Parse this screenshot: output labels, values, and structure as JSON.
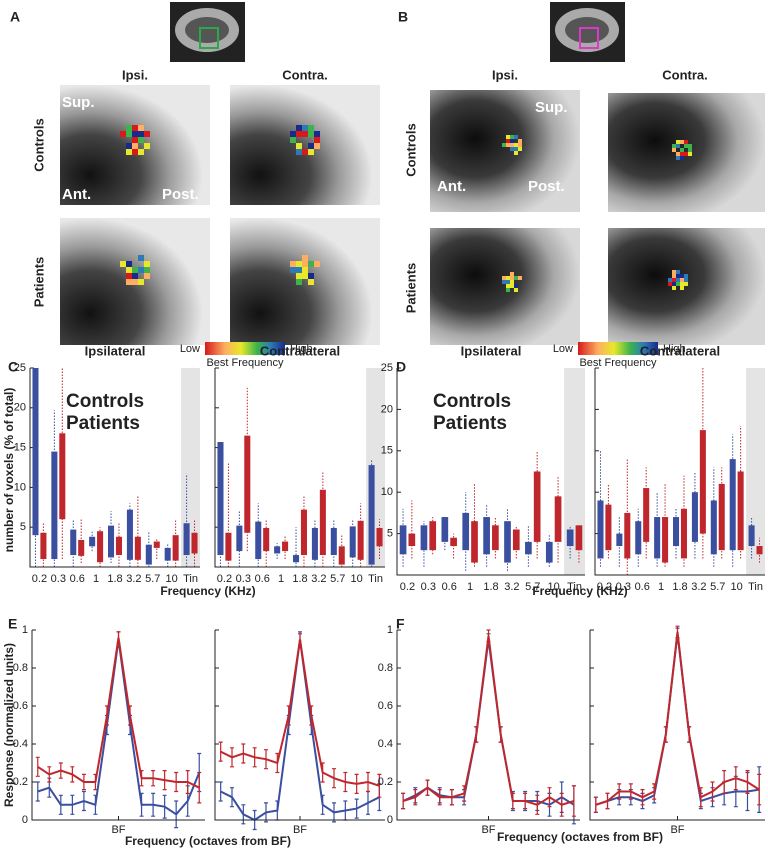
{
  "images": {
    "A": {
      "letter": "A",
      "columns": [
        "Ipsi.",
        "Contra."
      ],
      "rows": [
        "Controls",
        "Patients"
      ],
      "orientation": [
        "Sup.",
        "Ant.",
        "Post."
      ]
    },
    "B": {
      "letter": "B",
      "columns": [
        "Ipsi.",
        "Contra."
      ],
      "rows": [
        "Controls",
        "Patients"
      ],
      "orientation": [
        "Sup.",
        "Ant.",
        "Post."
      ]
    }
  },
  "colorbars": [
    {
      "low": "Low",
      "high": "High",
      "label": "Best Frequency"
    },
    {
      "low": "Low",
      "high": "High",
      "label": "Best Frequency"
    }
  ],
  "panels": {
    "C": {
      "letter": "C",
      "ylabel": "number of voxels (% of total)",
      "xlabel": "Frequency (KHz)"
    },
    "D": {
      "letter": "D",
      "xlabel": "Frequency (KHz)"
    },
    "E": {
      "letter": "E",
      "ylabel": "Response (normalized units)",
      "xlabel": "Frequency (octaves from BF)"
    },
    "F": {
      "letter": "F",
      "xlabel": "Frequency (octaves from BF)"
    }
  },
  "chart_data": [
    {
      "type": "box",
      "title": "Ipsilateral",
      "categories": [
        "0.2",
        "0.3",
        "0.6",
        "1",
        "1.8",
        "3.2",
        "5.7",
        "10",
        "Tin"
      ],
      "ylim": [
        0,
        25
      ],
      "yticks": [
        5,
        10,
        15,
        20,
        25
      ],
      "show_ytick_labels": true,
      "shade_last": true,
      "legend": "upper left",
      "series": [
        {
          "name": "Controls",
          "color": "#3a4fa0",
          "boxes": [
            [
              0,
              4,
              25,
              25
            ],
            [
              0,
              1,
              14.5,
              19.7
            ],
            [
              0,
              1.5,
              4.7,
              6
            ],
            [
              2,
              2.6,
              3.8,
              4.5
            ],
            [
              0.5,
              1.2,
              5.2,
              7
            ],
            [
              0,
              0.9,
              7.2,
              8
            ],
            [
              0,
              0.3,
              2.8,
              4.5
            ],
            [
              0,
              0.8,
              2.4,
              3
            ],
            [
              0,
              1.5,
              5.5,
              11.7
            ]
          ]
        },
        {
          "name": "Patients",
          "color": "#c0272d",
          "boxes": [
            [
              0,
              1,
              4.3,
              5.5
            ],
            [
              1,
              6,
              16.8,
              25
            ],
            [
              0.5,
              1.4,
              3.4,
              6
            ],
            [
              0,
              0.6,
              4.5,
              5
            ],
            [
              0,
              1.5,
              3.8,
              5.5
            ],
            [
              0,
              0.9,
              3.8,
              9
            ],
            [
              1,
              2.4,
              3.2,
              3.5
            ],
            [
              0,
              0.8,
              4,
              6
            ],
            [
              0,
              1.7,
              4.3,
              6
            ]
          ]
        }
      ]
    },
    {
      "type": "box",
      "title": "Contralateral",
      "categories": [
        "0.2",
        "0.3",
        "0.6",
        "1",
        "1.8",
        "3.2",
        "5.7",
        "10",
        "Tin"
      ],
      "ylim": [
        0,
        25
      ],
      "yticks": [
        5,
        10,
        15,
        20,
        25
      ],
      "show_ytick_labels": false,
      "shade_last": true,
      "series": [
        {
          "color": "#3a4fa0",
          "boxes": [
            [
              0,
              1.5,
              15.7,
              15.7
            ],
            [
              0,
              2,
              5.2,
              7
            ],
            [
              0,
              1,
              5.7,
              8
            ],
            [
              1,
              1.7,
              2.6,
              3
            ],
            [
              0,
              0.6,
              1.5,
              5
            ],
            [
              0,
              0.9,
              4.9,
              6
            ],
            [
              0,
              1.5,
              4.9,
              6
            ],
            [
              0,
              1.2,
              5.1,
              6
            ],
            [
              0,
              0.3,
              12.8,
              13.5
            ]
          ]
        },
        {
          "color": "#c0272d",
          "boxes": [
            [
              0,
              0.8,
              4.3,
              13
            ],
            [
              2,
              4.3,
              16.5,
              22.5
            ],
            [
              0,
              2,
              4.9,
              6
            ],
            [
              1,
              2,
              3.2,
              4
            ],
            [
              0,
              1.5,
              7.2,
              9
            ],
            [
              0,
              1.5,
              9.7,
              12
            ],
            [
              0,
              0.3,
              2.6,
              4
            ],
            [
              0,
              0.9,
              5.8,
              8
            ],
            [
              1,
              2.6,
              4.9,
              6
            ]
          ]
        }
      ]
    },
    {
      "type": "box",
      "title": "Ipsilateral",
      "categories": [
        "0.2",
        "0.3",
        "0.6",
        "1",
        "1.8",
        "3.2",
        "5.7",
        "10",
        "Tin"
      ],
      "ylim": [
        0,
        25
      ],
      "yticks": [
        5,
        10,
        15,
        20,
        25
      ],
      "show_ytick_labels": true,
      "shade_last": true,
      "legend": "upper left",
      "series": [
        {
          "name": "Controls",
          "color": "#3a4fa0",
          "boxes": [
            [
              1,
              2.5,
              6,
              8
            ],
            [
              1,
              3,
              6,
              6.5
            ],
            [
              3,
              4,
              7,
              7
            ],
            [
              0.5,
              3,
              7.5,
              10
            ],
            [
              1,
              2.5,
              7,
              8.5
            ],
            [
              0.5,
              1.5,
              6.5,
              8
            ],
            [
              1,
              2.5,
              4,
              6
            ],
            [
              1,
              1.5,
              4,
              5
            ],
            [
              2,
              3.5,
              5.5,
              6
            ]
          ]
        },
        {
          "name": "Patients",
          "color": "#c0272d",
          "boxes": [
            [
              2,
              3.5,
              5,
              9
            ],
            [
              2.5,
              3,
              6.5,
              7
            ],
            [
              2,
              3.5,
              4.5,
              5
            ],
            [
              1,
              1.5,
              6.5,
              11
            ],
            [
              2,
              3,
              6,
              7
            ],
            [
              2,
              3,
              5.5,
              6
            ],
            [
              2,
              4,
              12.5,
              15
            ],
            [
              1.5,
              4,
              9.5,
              12
            ],
            [
              1.5,
              3,
              6,
              6
            ]
          ]
        }
      ]
    },
    {
      "type": "box",
      "title": "Contralateral",
      "categories": [
        "0.2",
        "0.3",
        "0.6",
        "1",
        "1.8",
        "3.2",
        "5.7",
        "10",
        "Tin"
      ],
      "ylim": [
        0,
        25
      ],
      "yticks": [
        5,
        10,
        15,
        20,
        25
      ],
      "show_ytick_labels": false,
      "shade_last": true,
      "series": [
        {
          "color": "#3a4fa0",
          "boxes": [
            [
              1,
              2,
              9,
              15
            ],
            [
              1,
              3.5,
              5,
              7
            ],
            [
              1,
              2.5,
              6.5,
              8
            ],
            [
              1,
              2,
              7,
              10
            ],
            [
              2,
              3.5,
              7,
              8
            ],
            [
              2,
              4,
              10,
              12.5
            ],
            [
              1,
              2.5,
              9,
              13
            ],
            [
              1,
              3,
              14,
              17
            ],
            [
              2,
              3.5,
              6,
              7
            ]
          ]
        },
        {
          "color": "#c0272d",
          "boxes": [
            [
              2,
              3,
              8.5,
              11
            ],
            [
              0,
              2,
              7.5,
              14
            ],
            [
              2,
              4,
              10.5,
              13
            ],
            [
              1,
              1.5,
              7,
              11
            ],
            [
              1,
              2,
              8,
              12
            ],
            [
              2,
              5,
              17.5,
              25
            ],
            [
              2,
              3,
              11,
              13
            ],
            [
              2,
              3,
              12.5,
              18
            ],
            [
              1.5,
              2.5,
              3.5,
              4.5
            ]
          ]
        }
      ]
    },
    {
      "type": "line",
      "x": [
        -7,
        -6,
        -5,
        -4,
        -3,
        -2,
        -1,
        0,
        1,
        2,
        3,
        4,
        5,
        6,
        7
      ],
      "xlim": [
        -7.5,
        7.5
      ],
      "xticks": [
        {
          "value": 0,
          "label": "BF"
        }
      ],
      "ylim": [
        0,
        1
      ],
      "yticks": [
        0,
        0.2,
        0.4,
        0.6,
        0.8,
        1
      ],
      "show_ytick_labels": true,
      "series": [
        {
          "color": "#3a4fa0",
          "values": [
            0.15,
            0.17,
            0.08,
            0.08,
            0.1,
            0.08,
            0.5,
            0.95,
            0.5,
            0.08,
            0.08,
            0.07,
            0.03,
            0.1,
            0.25
          ],
          "errors": [
            0.05,
            0.05,
            0.05,
            0.05,
            0.05,
            0.05,
            0.05,
            0.04,
            0.05,
            0.06,
            0.06,
            0.06,
            0.07,
            0.08,
            0.1
          ]
        },
        {
          "color": "#c0272d",
          "values": [
            0.28,
            0.24,
            0.26,
            0.24,
            0.2,
            0.2,
            0.55,
            0.96,
            0.55,
            0.22,
            0.22,
            0.21,
            0.2,
            0.2,
            0.17
          ],
          "errors": [
            0.05,
            0.04,
            0.04,
            0.04,
            0.04,
            0.04,
            0.05,
            0.03,
            0.05,
            0.04,
            0.04,
            0.05,
            0.05,
            0.06,
            0.08
          ]
        }
      ]
    },
    {
      "type": "line",
      "x": [
        -7,
        -6,
        -5,
        -4,
        -3,
        -2,
        -1,
        0,
        1,
        2,
        3,
        4,
        5,
        6,
        7
      ],
      "xlim": [
        -7.5,
        7.5
      ],
      "xticks": [
        {
          "value": 0,
          "label": "BF"
        }
      ],
      "ylim": [
        0,
        1
      ],
      "yticks": [
        0,
        0.2,
        0.4,
        0.6,
        0.8,
        1
      ],
      "show_ytick_labels": false,
      "series": [
        {
          "color": "#3a4fa0",
          "values": [
            0.15,
            0.12,
            0.03,
            0.0,
            0.04,
            0.05,
            0.5,
            0.95,
            0.5,
            0.08,
            0.04,
            0.05,
            0.06,
            0.09,
            0.12
          ],
          "errors": [
            0.05,
            0.05,
            0.05,
            0.05,
            0.05,
            0.05,
            0.05,
            0.04,
            0.05,
            0.05,
            0.05,
            0.05,
            0.05,
            0.06,
            0.07
          ]
        },
        {
          "color": "#c0272d",
          "values": [
            0.36,
            0.33,
            0.35,
            0.33,
            0.32,
            0.3,
            0.55,
            0.95,
            0.55,
            0.25,
            0.22,
            0.2,
            0.19,
            0.2,
            0.18
          ],
          "errors": [
            0.05,
            0.05,
            0.05,
            0.05,
            0.05,
            0.05,
            0.05,
            0.03,
            0.05,
            0.05,
            0.05,
            0.05,
            0.05,
            0.05,
            0.06
          ]
        }
      ]
    },
    {
      "type": "line",
      "x": [
        -7,
        -6,
        -5,
        -4,
        -3,
        -2,
        -1,
        0,
        1,
        2,
        3,
        4,
        5,
        6,
        7
      ],
      "xlim": [
        -7.5,
        7.5
      ],
      "xticks": [
        {
          "value": 0,
          "label": "BF"
        }
      ],
      "ylim": [
        0,
        1
      ],
      "yticks": [
        0,
        0.2,
        0.4,
        0.6,
        0.8,
        1
      ],
      "show_ytick_labels": true,
      "series": [
        {
          "color": "#3a4fa0",
          "values": [
            0.1,
            0.13,
            0.17,
            0.13,
            0.12,
            0.12,
            0.45,
            0.95,
            0.45,
            0.1,
            0.1,
            0.1,
            0.08,
            0.12,
            0.08
          ],
          "errors": [
            0.04,
            0.04,
            0.04,
            0.04,
            0.04,
            0.04,
            0.04,
            0.03,
            0.04,
            0.05,
            0.05,
            0.05,
            0.06,
            0.08,
            0.1
          ]
        },
        {
          "color": "#c0272d",
          "values": [
            0.1,
            0.12,
            0.17,
            0.12,
            0.12,
            0.14,
            0.45,
            0.97,
            0.45,
            0.1,
            0.1,
            0.08,
            0.12,
            0.08,
            0.1
          ],
          "errors": [
            0.04,
            0.04,
            0.04,
            0.04,
            0.04,
            0.04,
            0.04,
            0.03,
            0.04,
            0.04,
            0.04,
            0.05,
            0.05,
            0.06,
            0.08
          ]
        }
      ]
    },
    {
      "type": "line",
      "x": [
        -7,
        -6,
        -5,
        -4,
        -3,
        -2,
        -1,
        0,
        1,
        2,
        3,
        4,
        5,
        6,
        7
      ],
      "xlim": [
        -7.5,
        7.5
      ],
      "xticks": [
        {
          "value": 0,
          "label": "BF"
        }
      ],
      "ylim": [
        0,
        1
      ],
      "yticks": [
        0,
        0.2,
        0.4,
        0.6,
        0.8,
        1
      ],
      "show_ytick_labels": false,
      "series": [
        {
          "color": "#3a4fa0",
          "values": [
            0.08,
            0.1,
            0.12,
            0.12,
            0.1,
            0.13,
            0.45,
            0.98,
            0.45,
            0.1,
            0.12,
            0.14,
            0.15,
            0.15,
            0.16
          ],
          "errors": [
            0.04,
            0.04,
            0.04,
            0.04,
            0.04,
            0.04,
            0.04,
            0.03,
            0.04,
            0.04,
            0.05,
            0.06,
            0.08,
            0.1,
            0.12
          ]
        },
        {
          "color": "#c0272d",
          "values": [
            0.08,
            0.1,
            0.15,
            0.15,
            0.12,
            0.15,
            0.45,
            0.99,
            0.45,
            0.12,
            0.15,
            0.2,
            0.22,
            0.2,
            0.16
          ],
          "errors": [
            0.04,
            0.04,
            0.04,
            0.04,
            0.04,
            0.04,
            0.04,
            0.03,
            0.04,
            0.05,
            0.05,
            0.06,
            0.06,
            0.06,
            0.08
          ]
        }
      ]
    }
  ]
}
